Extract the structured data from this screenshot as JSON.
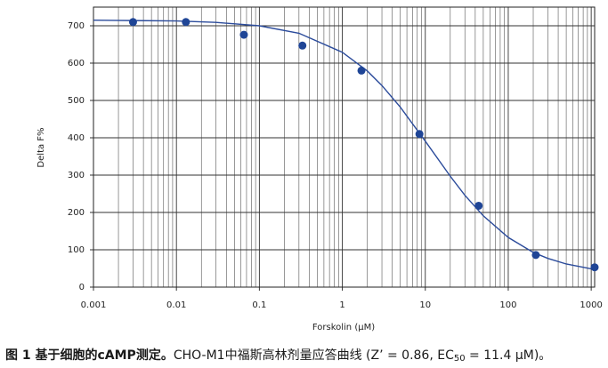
{
  "chart_data": {
    "type": "scatter",
    "x_label": "Forskolin (μM)",
    "y_label": "Delta F%",
    "xscale": "log",
    "grid": true,
    "xlim": [
      0.001,
      1100
    ],
    "xticks": [
      0.001,
      0.01,
      0.1,
      1,
      10,
      100,
      1000
    ],
    "ylim": [
      0,
      750
    ],
    "yticks": [
      0,
      100,
      200,
      300,
      400,
      500,
      600,
      700
    ],
    "series": [
      {
        "type": "line",
        "color": "#2b4b9b",
        "x": [
          0.001,
          0.003,
          0.01,
          0.03,
          0.1,
          0.3,
          1,
          2,
          3,
          5,
          10,
          20,
          30,
          50,
          100,
          200,
          300,
          500,
          1000,
          1100
        ],
        "values": [
          715,
          714,
          713,
          709,
          700,
          680,
          629,
          579,
          540,
          482,
          391,
          297,
          246,
          191,
          133,
          93,
          77,
          62,
          49,
          48
        ]
      },
      {
        "type": "scatter",
        "color": "#1f4596",
        "x": [
          0.003,
          0.013,
          0.065,
          0.33,
          1.7,
          8.5,
          44,
          215,
          1100
        ],
        "values": [
          710,
          710,
          676,
          647,
          580,
          410,
          218,
          86,
          53
        ]
      }
    ]
  },
  "caption": {
    "label": "图 1 基于细胞的cAMP测定。",
    "text": "CHO-M1中福斯高林剂量应答曲线 (Z’ = 0.86, EC",
    "sub": "50",
    "tail": " = 11.4 μM)。"
  }
}
